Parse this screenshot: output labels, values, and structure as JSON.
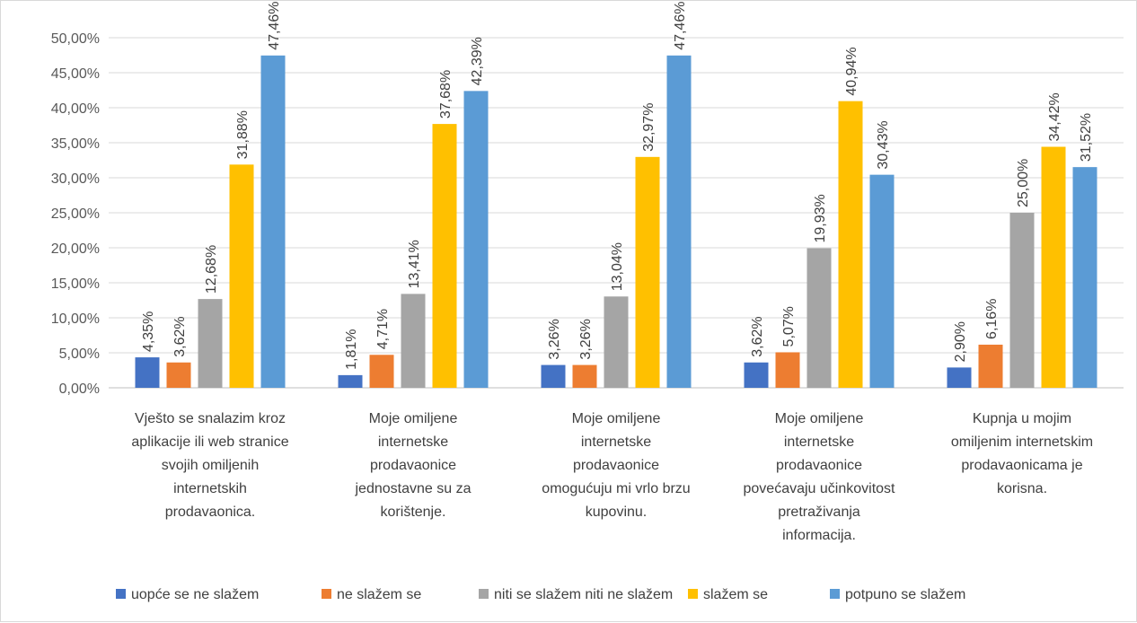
{
  "chart_data": {
    "type": "bar",
    "categories": [
      [
        "Vješto se snalazim kroz",
        "aplikacije ili web stranice",
        "svojih omiljenih",
        "internetskih",
        "prodavaonica."
      ],
      [
        "Moje omiljene",
        "internetske",
        "prodavaonice",
        "jednostavne su za",
        "korištenje."
      ],
      [
        "Moje omiljene",
        "internetske",
        "prodavaonice",
        "omogućuju mi vrlo brzu",
        "kupovinu."
      ],
      [
        "Moje omiljene",
        "internetske",
        "prodavaonice",
        "povećavaju učinkovitost",
        "pretraživanja",
        "informacija."
      ],
      [
        "Kupnja u mojim",
        "omiljenim internetskim",
        "prodavaonicama je",
        "korisna."
      ]
    ],
    "series": [
      {
        "name": "uopće se ne slažem",
        "color": "#4472c4",
        "values": [
          4.35,
          1.81,
          3.26,
          3.62,
          2.9
        ],
        "labels": [
          "4,35%",
          "1,81%",
          "3,26%",
          "3,62%",
          "2,90%"
        ]
      },
      {
        "name": "ne slažem se",
        "color": "#ed7d31",
        "values": [
          3.62,
          4.71,
          3.26,
          5.07,
          6.16
        ],
        "labels": [
          "3,62%",
          "4,71%",
          "3,26%",
          "5,07%",
          "6,16%"
        ]
      },
      {
        "name": "niti se slažem niti ne slažem",
        "color": "#a5a5a5",
        "values": [
          12.68,
          13.41,
          13.04,
          19.93,
          25.0
        ],
        "labels": [
          "12,68%",
          "13,41%",
          "13,04%",
          "19,93%",
          "25,00%"
        ]
      },
      {
        "name": "slažem se",
        "color": "#ffc000",
        "values": [
          31.88,
          37.68,
          32.97,
          40.94,
          34.42
        ],
        "labels": [
          "31,88%",
          "37,68%",
          "32,97%",
          "40,94%",
          "34,42%"
        ]
      },
      {
        "name": "potpuno se slažem",
        "color": "#5b9bd5",
        "values": [
          47.46,
          42.39,
          47.46,
          30.43,
          31.52
        ],
        "labels": [
          "47,46%",
          "42,39%",
          "47,46%",
          "30,43%",
          "31,52%"
        ]
      }
    ],
    "y_ticks": [
      "0,00%",
      "5,00%",
      "10,00%",
      "15,00%",
      "20,00%",
      "25,00%",
      "30,00%",
      "35,00%",
      "40,00%",
      "45,00%",
      "50,00%"
    ],
    "ylim": [
      0,
      50
    ],
    "grid": true,
    "legend": "bottom"
  }
}
